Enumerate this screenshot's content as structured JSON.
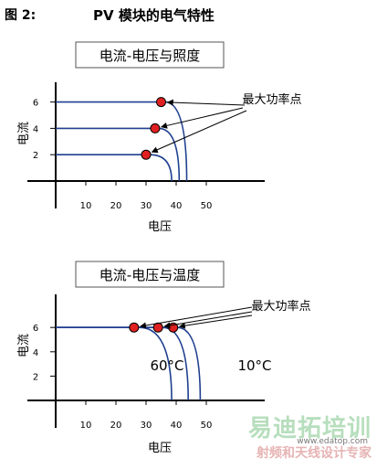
{
  "figure": {
    "label": "图 2:",
    "title": "PV 模块的电气特性"
  },
  "chart_data": [
    {
      "type": "line",
      "title": "电流-电压与照度",
      "xlabel": "电压",
      "ylabel": "电流",
      "xticks": [
        10,
        20,
        30,
        40,
        50
      ],
      "yticks": [
        2,
        4,
        6
      ],
      "xlim": [
        0,
        50
      ],
      "ylim": [
        0,
        8
      ],
      "series": [
        {
          "flat_current": 6,
          "mpp_voltage": 35,
          "open_circuit_voltage": 43.5
        },
        {
          "flat_current": 4,
          "mpp_voltage": 33,
          "open_circuit_voltage": 41
        },
        {
          "flat_current": 2,
          "mpp_voltage": 30,
          "open_circuit_voltage": 38.5
        }
      ],
      "annotations": [
        {
          "text": "最大功率点"
        }
      ],
      "line_color": "#1f3f8f",
      "marker_color": "#e02020"
    },
    {
      "type": "line",
      "title": "电流-电压与温度",
      "xlabel": "电压",
      "ylabel": "电流",
      "xticks": [
        10,
        20,
        30,
        40,
        50
      ],
      "yticks": [
        2,
        4,
        6
      ],
      "xlim": [
        0,
        50
      ],
      "ylim": [
        0,
        8
      ],
      "series": [
        {
          "flat_current": 6,
          "mpp_voltage": 26,
          "open_circuit_voltage": 38.5
        },
        {
          "flat_current": 6,
          "mpp_voltage": 34,
          "open_circuit_voltage": 44
        },
        {
          "flat_current": 6,
          "mpp_voltage": 39,
          "open_circuit_voltage": 48
        }
      ],
      "annotations": [
        {
          "text": "最大功率点"
        },
        {
          "text": "60°C"
        },
        {
          "text": "10°C"
        }
      ],
      "line_color": "#1f3f8f",
      "marker_color": "#e02020"
    }
  ],
  "watermark": {
    "main": "易迪拓培训",
    "sub": "射频和天线设计专家",
    "url": "www.edatop.com"
  }
}
